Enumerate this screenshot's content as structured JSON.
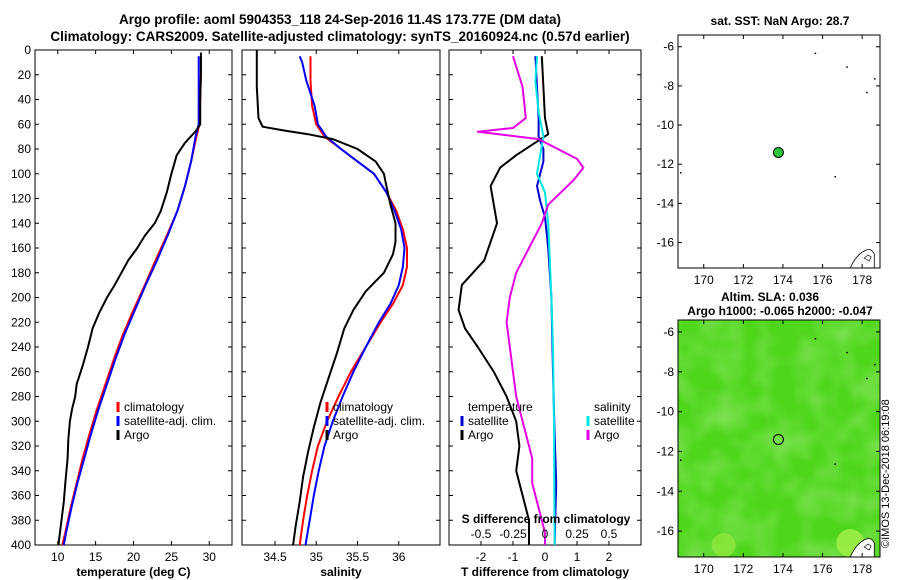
{
  "header": {
    "title_line1": "Argo profile: aoml 5904353_118 24-Sep-2016 11.4S 173.77E (DM data)",
    "title_line2": "Climatology: CARS2009. Satellite-adjusted climatology: synTS_20160924.nc (0.57d earlier)"
  },
  "maps": {
    "sst_title": "sat. SST: NaN Argo: 28.7",
    "sla_title1": "Altim. SLA: 0.036",
    "sla_title2": "Argo h1000: -0.065 h2000: -0.047",
    "xticks": [
      "170",
      "172",
      "174",
      "176",
      "178"
    ],
    "yticks": [
      "-6",
      "-8",
      "-10",
      "-12",
      "-14",
      "-16"
    ],
    "argo_lon": 173.77,
    "argo_lat": -11.4,
    "lon_range": [
      168.7,
      178.9
    ],
    "lat_range": [
      -17.3,
      -5.4
    ],
    "colors": {
      "land": "#ffffff",
      "sla_green": "#4ed61a",
      "marker": "#2bc53a"
    }
  },
  "credit": "©IMOS 13-Dec-2018 06:19:08",
  "chart_data": [
    {
      "type": "line",
      "name": "temperature",
      "xlabel": "temperature (deg C)",
      "xlim": [
        7,
        33
      ],
      "xticks": [
        10,
        15,
        20,
        25,
        30
      ],
      "ylim": [
        400,
        0
      ],
      "yticks": [
        0,
        20,
        40,
        60,
        80,
        100,
        120,
        140,
        160,
        180,
        200,
        220,
        240,
        260,
        280,
        300,
        320,
        340,
        360,
        380,
        400
      ],
      "legend": [
        "climatology",
        "satellite-adj. clim.",
        "Argo"
      ],
      "series": [
        {
          "name": "climatology",
          "color": "#ff0000",
          "points": [
            [
              28.9,
              5
            ],
            [
              28.9,
              20
            ],
            [
              28.8,
              40
            ],
            [
              28.7,
              60
            ],
            [
              28.3,
              70
            ],
            [
              27.6,
              90
            ],
            [
              26.8,
              110
            ],
            [
              25.8,
              130
            ],
            [
              24.4,
              150
            ],
            [
              22.9,
              170
            ],
            [
              21.5,
              190
            ],
            [
              20.0,
              210
            ],
            [
              18.6,
              230
            ],
            [
              17.4,
              250
            ],
            [
              16.3,
              270
            ],
            [
              15.2,
              290
            ],
            [
              14.2,
              310
            ],
            [
              13.3,
              330
            ],
            [
              12.5,
              350
            ],
            [
              11.7,
              370
            ],
            [
              11.0,
              390
            ],
            [
              10.6,
              400
            ]
          ]
        },
        {
          "name": "satellite-adj. clim.",
          "color": "#0000ff",
          "points": [
            [
              28.6,
              5
            ],
            [
              28.6,
              20
            ],
            [
              28.6,
              40
            ],
            [
              28.6,
              60
            ],
            [
              28.2,
              70
            ],
            [
              27.6,
              90
            ],
            [
              26.8,
              110
            ],
            [
              25.8,
              130
            ],
            [
              24.5,
              150
            ],
            [
              23.1,
              170
            ],
            [
              21.6,
              190
            ],
            [
              20.2,
              210
            ],
            [
              18.8,
              230
            ],
            [
              17.6,
              250
            ],
            [
              16.5,
              270
            ],
            [
              15.4,
              290
            ],
            [
              14.4,
              310
            ],
            [
              13.5,
              330
            ],
            [
              12.6,
              350
            ],
            [
              11.8,
              370
            ],
            [
              11.1,
              390
            ],
            [
              10.8,
              400
            ]
          ]
        },
        {
          "name": "Argo",
          "color": "#000000",
          "points": [
            [
              28.9,
              2
            ],
            [
              28.9,
              20
            ],
            [
              28.8,
              40
            ],
            [
              28.8,
              60
            ],
            [
              28.3,
              65
            ],
            [
              26.8,
              75
            ],
            [
              25.7,
              85
            ],
            [
              25.0,
              100
            ],
            [
              24.4,
              115
            ],
            [
              23.6,
              130
            ],
            [
              22.8,
              140
            ],
            [
              21.5,
              150
            ],
            [
              20.5,
              160
            ],
            [
              19.3,
              170
            ],
            [
              18.4,
              180
            ],
            [
              17.5,
              190
            ],
            [
              16.5,
              200
            ],
            [
              15.5,
              212
            ],
            [
              14.6,
              225
            ],
            [
              14.0,
              240
            ],
            [
              13.3,
              255
            ],
            [
              12.5,
              270
            ],
            [
              12.3,
              280
            ],
            [
              11.9,
              290
            ],
            [
              11.6,
              300
            ],
            [
              11.4,
              315
            ],
            [
              11.3,
              330
            ],
            [
              11.0,
              350
            ],
            [
              10.8,
              365
            ],
            [
              10.5,
              380
            ],
            [
              10.2,
              395
            ],
            [
              10.1,
              400
            ]
          ]
        }
      ]
    },
    {
      "type": "line",
      "name": "salinity",
      "xlabel": "salinity",
      "xlim": [
        34.1,
        36.5
      ],
      "xticks": [
        34.5,
        35,
        35.5,
        36
      ],
      "ylim": [
        400,
        0
      ],
      "legend": [
        "climatology",
        "satellite-adj. clim.",
        "Argo"
      ],
      "series": [
        {
          "name": "climatology",
          "color": "#ff0000",
          "points": [
            [
              34.93,
              5
            ],
            [
              34.93,
              25
            ],
            [
              34.95,
              45
            ],
            [
              35.0,
              60
            ],
            [
              35.1,
              70
            ],
            [
              35.3,
              80
            ],
            [
              35.5,
              90
            ],
            [
              35.7,
              100
            ],
            [
              35.85,
              115
            ],
            [
              35.97,
              130
            ],
            [
              36.05,
              145
            ],
            [
              36.1,
              160
            ],
            [
              36.1,
              175
            ],
            [
              36.05,
              190
            ],
            [
              35.93,
              205
            ],
            [
              35.78,
              220
            ],
            [
              35.6,
              240
            ],
            [
              35.42,
              260
            ],
            [
              35.27,
              280
            ],
            [
              35.13,
              300
            ],
            [
              35.02,
              320
            ],
            [
              34.95,
              340
            ],
            [
              34.89,
              360
            ],
            [
              34.84,
              380
            ],
            [
              34.8,
              400
            ]
          ]
        },
        {
          "name": "satellite-adj. clim.",
          "color": "#0000ff",
          "points": [
            [
              34.8,
              5
            ],
            [
              34.83,
              10
            ],
            [
              34.88,
              25
            ],
            [
              34.98,
              45
            ],
            [
              35.02,
              60
            ],
            [
              35.12,
              70
            ],
            [
              35.3,
              80
            ],
            [
              35.5,
              90
            ],
            [
              35.7,
              100
            ],
            [
              35.85,
              115
            ],
            [
              35.95,
              130
            ],
            [
              36.03,
              145
            ],
            [
              36.07,
              160
            ],
            [
              36.05,
              175
            ],
            [
              36.0,
              190
            ],
            [
              35.9,
              205
            ],
            [
              35.76,
              220
            ],
            [
              35.6,
              240
            ],
            [
              35.45,
              260
            ],
            [
              35.32,
              280
            ],
            [
              35.2,
              300
            ],
            [
              35.1,
              320
            ],
            [
              35.03,
              340
            ],
            [
              34.97,
              360
            ],
            [
              34.92,
              380
            ],
            [
              34.87,
              400
            ]
          ]
        },
        {
          "name": "Argo",
          "color": "#000000",
          "points": [
            [
              34.28,
              0
            ],
            [
              34.28,
              30
            ],
            [
              34.3,
              55
            ],
            [
              34.35,
              62
            ],
            [
              34.6,
              65
            ],
            [
              34.9,
              68
            ],
            [
              35.2,
              72
            ],
            [
              35.5,
              80
            ],
            [
              35.72,
              90
            ],
            [
              35.82,
              100
            ],
            [
              35.85,
              110
            ],
            [
              35.9,
              125
            ],
            [
              35.96,
              140
            ],
            [
              35.96,
              155
            ],
            [
              35.93,
              165
            ],
            [
              35.82,
              180
            ],
            [
              35.6,
              195
            ],
            [
              35.45,
              210
            ],
            [
              35.34,
              225
            ],
            [
              35.25,
              245
            ],
            [
              35.15,
              265
            ],
            [
              35.05,
              285
            ],
            [
              34.97,
              305
            ],
            [
              34.9,
              325
            ],
            [
              34.84,
              345
            ],
            [
              34.8,
              365
            ],
            [
              34.75,
              385
            ],
            [
              34.72,
              400
            ]
          ]
        }
      ]
    },
    {
      "type": "line",
      "name": "difference",
      "xlabel": "T difference from climatology",
      "xlim": [
        -3.0,
        3.0
      ],
      "xticks": [
        -2,
        -1,
        0,
        1,
        2
      ],
      "top_label": "S difference from climatology",
      "top_ticks": [
        -0.5,
        -0.25,
        0,
        0.25,
        0.5
      ],
      "ylim": [
        400,
        0
      ],
      "legend_left": {
        "title": "temperature",
        "items": [
          "satellite",
          "Argo"
        ]
      },
      "legend_right": {
        "title": "salinity",
        "items": [
          "satellite",
          "Argo"
        ]
      },
      "series": [
        {
          "name": "T satellite",
          "color": "#0000cc",
          "points": [
            [
              -0.3,
              5
            ],
            [
              -0.25,
              30
            ],
            [
              -0.2,
              55
            ],
            [
              -0.2,
              70
            ],
            [
              -0.05,
              80
            ],
            [
              -0.05,
              90
            ],
            [
              -0.15,
              100
            ],
            [
              -0.25,
              110
            ],
            [
              -0.15,
              122
            ],
            [
              0.0,
              135
            ],
            [
              0.1,
              160
            ],
            [
              0.2,
              200
            ],
            [
              0.25,
              260
            ],
            [
              0.3,
              310
            ],
            [
              0.35,
              350
            ],
            [
              0.3,
              400
            ]
          ]
        },
        {
          "name": "T Argo",
          "color": "#000000",
          "points": [
            [
              -0.1,
              5
            ],
            [
              0.0,
              55
            ],
            [
              0.1,
              68
            ],
            [
              -0.9,
              85
            ],
            [
              -1.4,
              95
            ],
            [
              -1.7,
              110
            ],
            [
              -1.6,
              125
            ],
            [
              -1.5,
              140
            ],
            [
              -1.9,
              170
            ],
            [
              -2.6,
              190
            ],
            [
              -2.7,
              210
            ],
            [
              -2.5,
              225
            ],
            [
              -2.1,
              240
            ],
            [
              -1.6,
              260
            ],
            [
              -1.2,
              280
            ],
            [
              -0.9,
              300
            ],
            [
              -0.8,
              320
            ],
            [
              -0.9,
              340
            ],
            [
              -0.7,
              360
            ],
            [
              -0.5,
              380
            ],
            [
              -0.5,
              400
            ]
          ]
        },
        {
          "name": "S satellite",
          "color": "#00e6e6",
          "points": [
            [
              -0.25,
              5
            ],
            [
              -0.3,
              25
            ],
            [
              -0.2,
              50
            ],
            [
              -0.05,
              70
            ],
            [
              -0.15,
              85
            ],
            [
              -0.25,
              100
            ],
            [
              0.0,
              115
            ],
            [
              0.1,
              140
            ],
            [
              0.15,
              170
            ],
            [
              0.2,
              200
            ],
            [
              0.25,
              240
            ],
            [
              0.28,
              300
            ],
            [
              0.3,
              400
            ]
          ]
        },
        {
          "name": "S Argo",
          "color": "#e600e6",
          "points": [
            [
              -1.0,
              5
            ],
            [
              -0.7,
              30
            ],
            [
              -0.6,
              55
            ],
            [
              -1.0,
              63
            ],
            [
              -2.1,
              66
            ],
            [
              -0.2,
              72
            ],
            [
              0.4,
              80
            ],
            [
              1.0,
              88
            ],
            [
              1.2,
              95
            ],
            [
              0.9,
              105
            ],
            [
              0.5,
              115
            ],
            [
              0.1,
              125
            ],
            [
              -0.1,
              140
            ],
            [
              -0.5,
              160
            ],
            [
              -0.9,
              180
            ],
            [
              -1.1,
              200
            ],
            [
              -1.2,
              220
            ],
            [
              -1.1,
              240
            ],
            [
              -1.0,
              260
            ],
            [
              -0.9,
              280
            ],
            [
              -0.7,
              300
            ],
            [
              -0.4,
              330
            ],
            [
              -0.4,
              350
            ],
            [
              -0.2,
              370
            ],
            [
              0.0,
              390
            ],
            [
              0.0,
              400
            ]
          ]
        }
      ]
    }
  ]
}
